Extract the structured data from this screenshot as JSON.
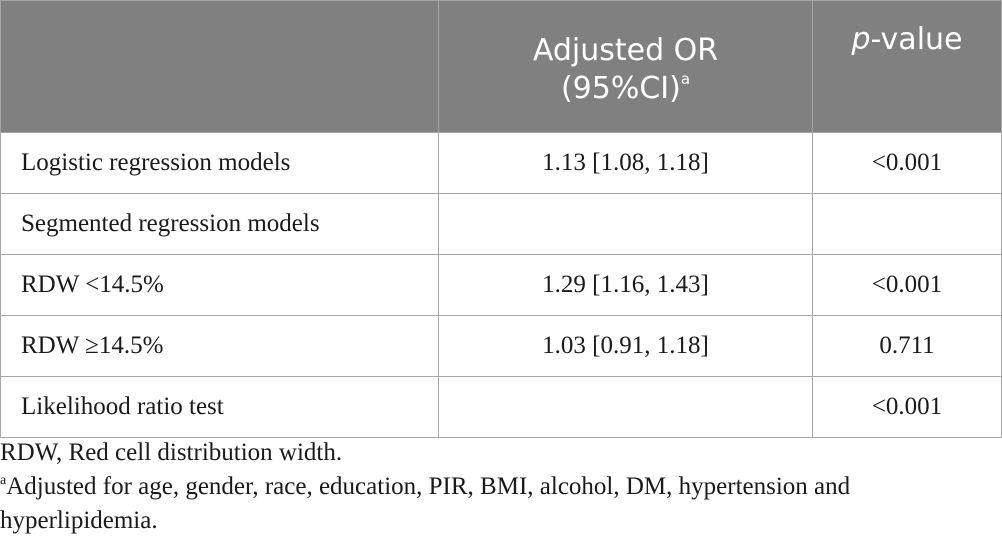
{
  "table": {
    "headers": {
      "col1": "",
      "col2_line1": "Adjusted OR",
      "col2_line2": "(95%CI)",
      "col2_sup": "a",
      "col3_italic": "p",
      "col3_rest": "-value"
    },
    "rows": [
      {
        "label": "Logistic regression models",
        "or": "1.13 [1.08, 1.18]",
        "p": "<0.001"
      },
      {
        "label": "Segmented regression models",
        "or": "",
        "p": ""
      },
      {
        "label": "RDW <14.5%",
        "or": "1.29 [1.16, 1.43]",
        "p": "<0.001"
      },
      {
        "label": "RDW ≥14.5%",
        "or": "1.03 [0.91, 1.18]",
        "p": "0.711"
      },
      {
        "label": "Likelihood ratio test",
        "or": "",
        "p": "<0.001"
      }
    ]
  },
  "footnotes": {
    "abbrev": "RDW, Red cell distribution width.",
    "a_marker": "a",
    "a_text": "Adjusted for age, gender, race, education, PIR, BMI, alcohol, DM, hypertension and hyperlipidemia."
  }
}
